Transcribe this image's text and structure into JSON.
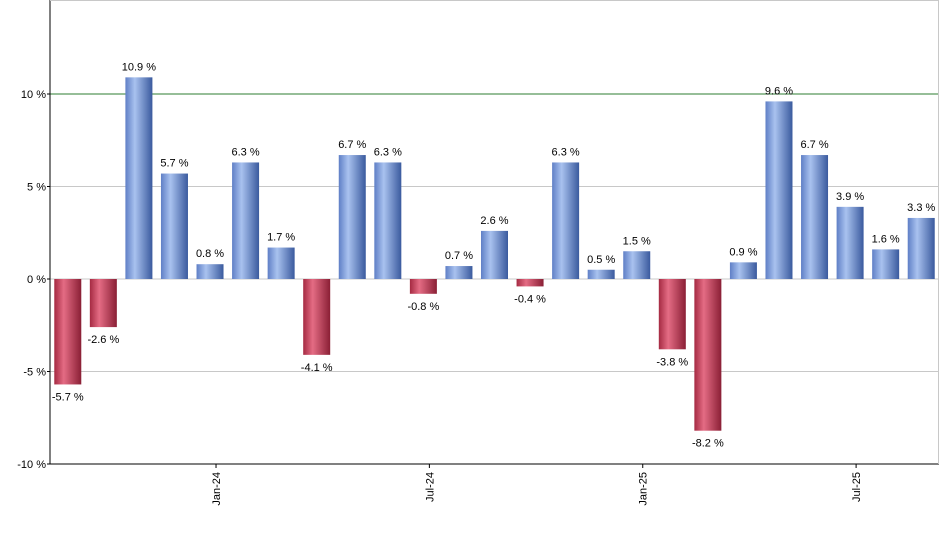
{
  "chart_data": {
    "type": "bar",
    "title": "",
    "xlabel": "",
    "ylabel": "",
    "ylim": [
      -10,
      15
    ],
    "yticks": [
      -10,
      -5,
      0,
      5,
      10
    ],
    "ytick_labels": [
      "-10 %",
      "-5 %",
      "0 %",
      "5 %",
      "10 %"
    ],
    "grid": true,
    "reference_line": {
      "value": 10,
      "color": "#2e7d32"
    },
    "values": [
      -5.7,
      -2.6,
      10.9,
      5.7,
      0.8,
      6.3,
      1.7,
      -4.1,
      6.7,
      6.3,
      -0.8,
      0.7,
      2.6,
      -0.4,
      6.3,
      0.5,
      1.5,
      -3.8,
      -8.2,
      0.9,
      9.6,
      6.7,
      3.9,
      1.6,
      3.3
    ],
    "data_labels": [
      "-5.7 %",
      "-2.6 %",
      "10.9 %",
      "5.7 %",
      "0.8 %",
      "6.3 %",
      "1.7 %",
      "-4.1 %",
      "6.7 %",
      "6.3 %",
      "-0.8 %",
      "0.7 %",
      "2.6 %",
      "-0.4 %",
      "6.3 %",
      "0.5 %",
      "1.5 %",
      "-3.8 %",
      "-8.2 %",
      "0.9 %",
      "9.6 %",
      "6.7 %",
      "3.9 %",
      "1.6 %",
      "3.3 %"
    ],
    "xtick_labels": [
      {
        "label": "Jan-24",
        "index": 4
      },
      {
        "label": "Jul-24",
        "index": 10
      },
      {
        "label": "Jan-25",
        "index": 16
      },
      {
        "label": "Jul-25",
        "index": 22
      }
    ],
    "colors": {
      "positive": "#7b9bd8",
      "negative": "#c03850",
      "grid": "#c8c8c8",
      "axis": "#000000"
    }
  }
}
